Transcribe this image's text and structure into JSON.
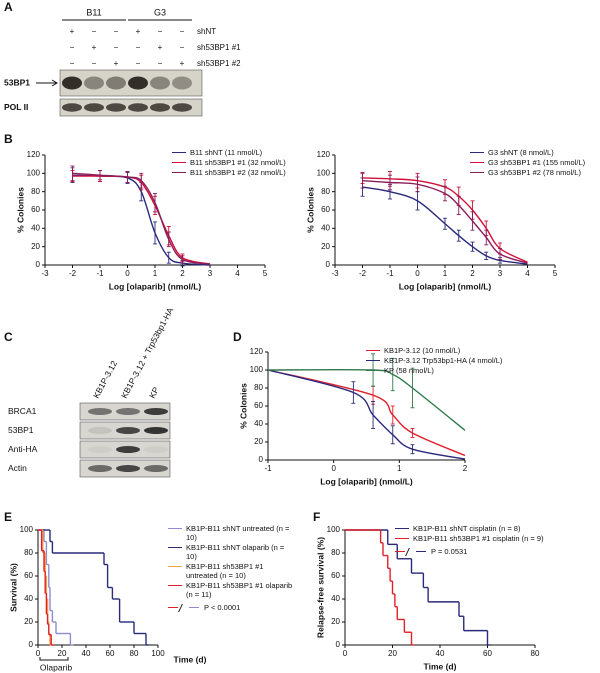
{
  "blots": [
    {
      "panel": "A",
      "groups": [
        "B11",
        "G3"
      ],
      "conditions": [
        {
          "label": "shNT",
          "signs": [
            "+",
            "−",
            "−",
            "+",
            "−",
            "−"
          ]
        },
        {
          "label": "sh53BP1 #1",
          "signs": [
            "−",
            "+",
            "−",
            "−",
            "+",
            "−"
          ]
        },
        {
          "label": "sh53BP1 #2",
          "signs": [
            "−",
            "−",
            "+",
            "−",
            "−",
            "+"
          ]
        }
      ],
      "bands": [
        "53BP1",
        "POL II"
      ]
    },
    {
      "panel": "C",
      "lanes": [
        "KB1P-3.12",
        "KB1P-3.12 + Trp53bp1-HA",
        "KP"
      ],
      "bands": [
        "BRCA1",
        "53BP1",
        "Anti-HA",
        "Actin"
      ]
    }
  ],
  "chart_data": [
    {
      "type": "line",
      "panel": "B",
      "xlabel": "Log [olaparib] (nmol/L)",
      "ylabel": "% Colonies",
      "xlim": [
        -3,
        5
      ],
      "xticks": [
        -3,
        -2,
        -1,
        0,
        1,
        2,
        3,
        4,
        5
      ],
      "ylim": [
        0,
        120
      ],
      "yticks": [
        0,
        20,
        40,
        60,
        80,
        100,
        120
      ],
      "series": [
        {
          "name": "B11 shNT (11 nmol/L)",
          "color": "#2a2a7c",
          "x": [
            -2,
            -1,
            0,
            0.5,
            1,
            1.5,
            2,
            3
          ],
          "values": [
            98,
            97,
            95,
            80,
            35,
            8,
            2,
            0
          ],
          "errors": [
            8,
            6,
            6,
            10,
            12,
            6,
            3,
            null
          ]
        },
        {
          "name": "B11 sh53BP1 #1 (32 nmol/L)",
          "color": "#d0103a",
          "x": [
            -2,
            -1,
            0,
            0.5,
            1,
            1.5,
            2,
            3
          ],
          "values": [
            97,
            97,
            96,
            90,
            65,
            32,
            8,
            1
          ],
          "errors": [
            6,
            6,
            6,
            8,
            10,
            10,
            4,
            null
          ]
        },
        {
          "name": "B11 sh53BP1 #2 (32 nmol/L)",
          "color": "#8a1d5a",
          "x": [
            -2,
            -1,
            0,
            0.5,
            1,
            1.5,
            2,
            3
          ],
          "values": [
            100,
            98,
            96,
            92,
            68,
            28,
            6,
            1
          ],
          "errors": [
            8,
            5,
            6,
            8,
            10,
            8,
            4,
            null
          ]
        }
      ]
    },
    {
      "type": "line",
      "xlabel": "Log [olaparib] (nmol/L)",
      "ylabel": "% Colonies",
      "xlim": [
        -3,
        5
      ],
      "xticks": [
        -3,
        -2,
        -1,
        0,
        1,
        2,
        3,
        4,
        5
      ],
      "ylim": [
        0,
        120
      ],
      "yticks": [
        0,
        20,
        40,
        60,
        80,
        100,
        120
      ],
      "series": [
        {
          "name": "G3 shNT (8 nmol/L)",
          "color": "#2a2a7c",
          "x": [
            -2,
            -1,
            0,
            1,
            1.5,
            2,
            2.5,
            3,
            4
          ],
          "values": [
            85,
            80,
            70,
            45,
            32,
            20,
            10,
            5,
            1
          ],
          "errors": [
            10,
            8,
            10,
            6,
            6,
            5,
            4,
            3,
            null
          ]
        },
        {
          "name": "G3 sh53BP1 #1 (155 nmol/L)",
          "color": "#d0103a",
          "x": [
            -2,
            -1,
            0,
            1,
            1.5,
            2,
            2.5,
            3,
            4
          ],
          "values": [
            95,
            94,
            92,
            85,
            75,
            60,
            40,
            18,
            3
          ],
          "errors": [
            6,
            8,
            8,
            8,
            10,
            10,
            8,
            6,
            null
          ]
        },
        {
          "name": "G3 sh53BP1 #2 (78 nmol/L)",
          "color": "#8a1d5a",
          "x": [
            -2,
            -1,
            0,
            1,
            1.5,
            2,
            2.5,
            3,
            4
          ],
          "values": [
            92,
            90,
            88,
            78,
            65,
            48,
            30,
            12,
            2
          ],
          "errors": [
            8,
            8,
            8,
            8,
            10,
            10,
            8,
            6,
            null
          ]
        }
      ]
    },
    {
      "type": "line",
      "panel": "D",
      "xlabel": "Log [olaparib] (nmol/L)",
      "ylabel": "% Colonies",
      "xlim": [
        -1,
        2
      ],
      "xticks": [
        -1,
        0,
        1,
        2
      ],
      "ylim": [
        0,
        120
      ],
      "yticks": [
        0,
        20,
        40,
        60,
        80,
        100,
        120
      ],
      "series": [
        {
          "name": "KB1P-3.12 (10 nmol/L)",
          "color": "#e0202a",
          "x": [
            -1,
            0.6,
            0.9,
            1.2,
            2
          ],
          "values": [
            100,
            72,
            50,
            30,
            5
          ],
          "errors": [
            null,
            10,
            10,
            5,
            null
          ]
        },
        {
          "name": "KB1P-3.12 Trp53bp1-HA (4 nmol/L)",
          "color": "#2a2a7c",
          "x": [
            -1,
            0.3,
            0.6,
            0.9,
            1.2,
            2
          ],
          "values": [
            100,
            75,
            50,
            28,
            12,
            1
          ],
          "errors": [
            null,
            12,
            15,
            10,
            5,
            null
          ]
        },
        {
          "name": "KP (58 nmol/L)",
          "color": "#2f7a4c",
          "x": [
            -1,
            0.6,
            0.9,
            1.2,
            2
          ],
          "values": [
            100,
            100,
            95,
            80,
            33
          ],
          "errors": [
            null,
            18,
            18,
            22,
            null
          ]
        }
      ]
    },
    {
      "type": "step",
      "panel": "E",
      "xlabel": "Time (d)",
      "ylabel": "Survival (%)",
      "treatment_label": "Olaparib",
      "annotation": "P < 0.0001",
      "xlim": [
        0,
        100
      ],
      "xticks": [
        0,
        20,
        40,
        60,
        80,
        100
      ],
      "ylim": [
        0,
        100
      ],
      "yticks": [
        0,
        20,
        40,
        60,
        80,
        100
      ],
      "series": [
        {
          "name": "KB1P-B11 shNT untreated (n = 10)",
          "color": "#8c8cd0",
          "x": [
            0,
            5,
            7,
            9,
            10,
            12,
            15,
            27
          ],
          "values": [
            100,
            90,
            70,
            50,
            30,
            20,
            10,
            0
          ]
        },
        {
          "name": "KB1P-B11 shNT olaparib (n = 10)",
          "color": "#2a2a7c",
          "x": [
            0,
            10,
            12,
            55,
            58,
            62,
            68,
            80,
            90
          ],
          "values": [
            100,
            90,
            80,
            70,
            50,
            40,
            20,
            10,
            0
          ]
        },
        {
          "name": "KB1P-B11 sh53BP1 #1 untreated (n = 10)",
          "color": "#f5a04a",
          "x": [
            0,
            4,
            6,
            7,
            8,
            9,
            10
          ],
          "values": [
            100,
            80,
            60,
            40,
            20,
            10,
            0
          ]
        },
        {
          "name": "KB1P-B11 sh53BP1 #1 olaparib (n = 11)",
          "color": "#e0202a",
          "x": [
            0,
            3,
            5,
            6,
            7,
            8,
            9,
            11
          ],
          "values": [
            100,
            82,
            64,
            45,
            27,
            18,
            9,
            0
          ]
        }
      ]
    },
    {
      "type": "step",
      "panel": "F",
      "xlabel": "Time (d)",
      "ylabel": "Relapse-free survival (%)",
      "annotation": "P = 0.0531",
      "xlim": [
        0,
        80
      ],
      "xticks": [
        0,
        20,
        40,
        60,
        80
      ],
      "ylim": [
        0,
        100
      ],
      "yticks": [
        0,
        20,
        40,
        60,
        80,
        100
      ],
      "series": [
        {
          "name": "KB1P-B11 shNT cisplatin (n = 8)",
          "color": "#2a2a7c",
          "x": [
            0,
            18,
            22,
            28,
            33,
            35,
            48,
            50,
            60
          ],
          "values": [
            100,
            87.5,
            75,
            62.5,
            50,
            37.5,
            25,
            12.5,
            0
          ]
        },
        {
          "name": "KB1P-B11 sh53BP1 #1 cisplatin (n = 9)",
          "color": "#e0202a",
          "x": [
            0,
            15,
            16,
            18,
            19,
            20,
            21,
            22,
            25,
            28
          ],
          "values": [
            100,
            88.9,
            77.8,
            66.7,
            55.6,
            44.4,
            33.3,
            22.2,
            11.1,
            0
          ]
        }
      ]
    }
  ]
}
